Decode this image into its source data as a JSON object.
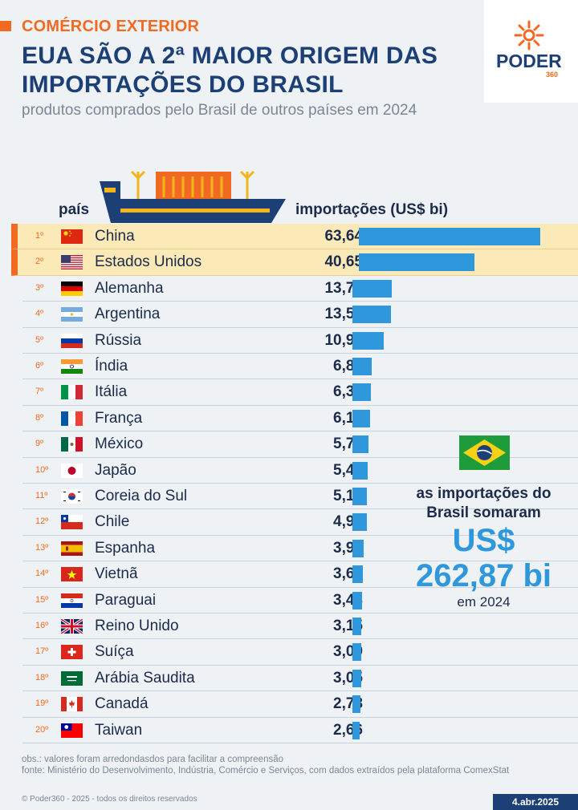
{
  "header": {
    "kicker": "COMÉRCIO EXTERIOR",
    "title": "EUA SÃO A 2ª MAIOR ORIGEM DAS IMPORTAÇÕES DO BRASIL",
    "subtitle": "produtos comprados pelo Brasil de outros países em 2024"
  },
  "logo": {
    "name": "PODER",
    "number": "360"
  },
  "chart_data": {
    "type": "bar",
    "orientation": "horizontal",
    "column_labels": {
      "country": "país",
      "value": "importações (US$ bi)"
    },
    "categories": [
      "China",
      "Estados Unidos",
      "Alemanha",
      "Argentina",
      "Rússia",
      "Índia",
      "Itália",
      "França",
      "México",
      "Japão",
      "Coreia do Sul",
      "Chile",
      "Espanha",
      "Vietnã",
      "Paraguai",
      "Reino Unido",
      "Suíça",
      "Arábia Saudita",
      "Canadá",
      "Taiwan"
    ],
    "ranks": [
      "1º",
      "2º",
      "3º",
      "4º",
      "5º",
      "6º",
      "7º",
      "8º",
      "9º",
      "10º",
      "11º",
      "12º",
      "13º",
      "14º",
      "15º",
      "16º",
      "17º",
      "18º",
      "19º",
      "20º"
    ],
    "values": [
      63.64,
      40.65,
      13.78,
      13.58,
      10.97,
      6.85,
      6.39,
      6.19,
      5.77,
      5.43,
      5.16,
      4.95,
      3.98,
      3.64,
      3.48,
      3.15,
      3.09,
      3.05,
      2.78,
      2.66
    ],
    "value_labels": [
      "63,64",
      "40,65",
      "13,78",
      "13,58",
      "10,97",
      "6,85",
      "6,39",
      "6,19",
      "5,77",
      "5,43",
      "5,16",
      "4,95",
      "3,98",
      "3,64",
      "3,48",
      "3,15",
      "3,09",
      "3,05",
      "2,78",
      "2,66"
    ],
    "flags": [
      "china-flag-icon",
      "usa-flag-icon",
      "germany-flag-icon",
      "argentina-flag-icon",
      "russia-flag-icon",
      "india-flag-icon",
      "italy-flag-icon",
      "france-flag-icon",
      "mexico-flag-icon",
      "japan-flag-icon",
      "south-korea-flag-icon",
      "chile-flag-icon",
      "spain-flag-icon",
      "vietnam-flag-icon",
      "paraguay-flag-icon",
      "uk-flag-icon",
      "switzerland-flag-icon",
      "saudi-arabia-flag-icon",
      "canada-flag-icon",
      "taiwan-flag-icon"
    ],
    "highlighted": [
      0,
      1
    ],
    "bar_color": "#2f97dc",
    "highlight_color": "#fbe9b8",
    "accent_color": "#f26a21"
  },
  "callout": {
    "line1": "as importações do",
    "line2": "Brasil somaram",
    "currency": "US$",
    "amount": "262,87 bi",
    "year": "em 2024",
    "flag_icon": "brazil-flag-icon"
  },
  "footer": {
    "obs": "obs.: valores foram arredondasdos para facilitar a compreensão",
    "source": "fonte: Ministério do Desenvolvimento, Indústria, Comércio e Serviços, com dados extraídos pela plataforma ComexStat",
    "copyright": "© Poder360 - 2025 - todos os direitos reservados",
    "date": "4.abr.2025"
  }
}
